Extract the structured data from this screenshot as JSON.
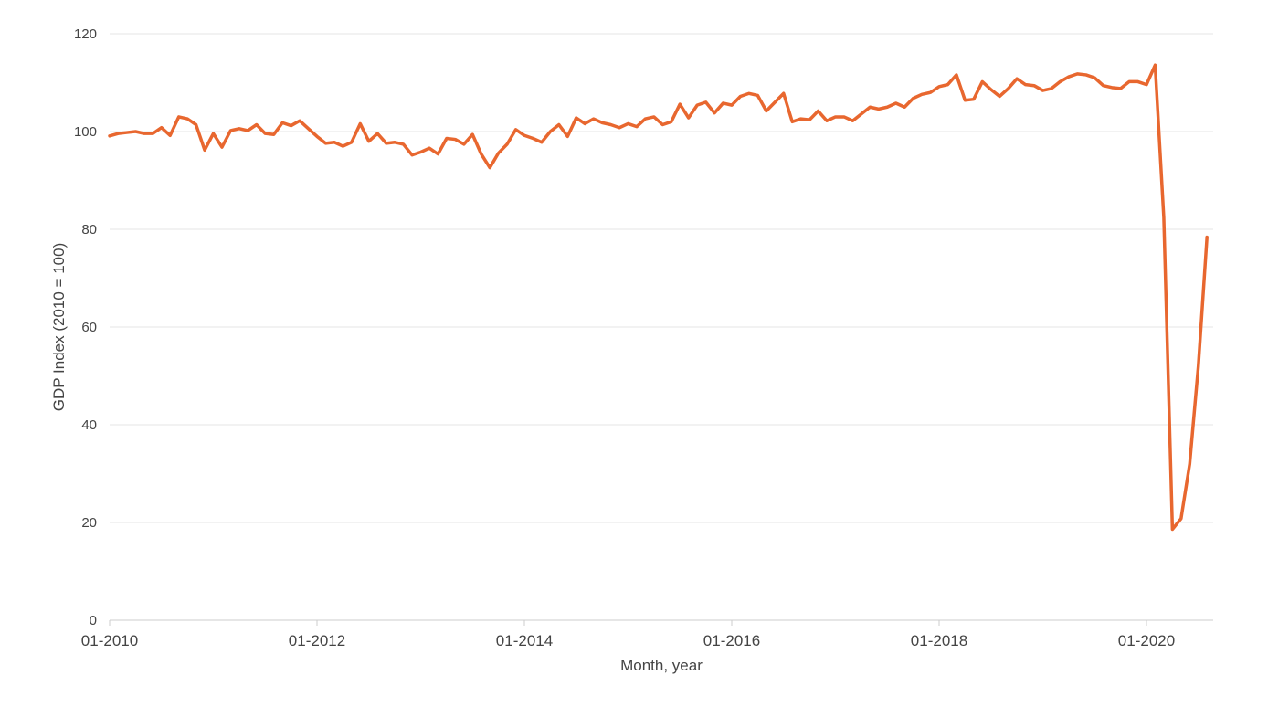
{
  "chart_data": {
    "type": "line",
    "xlabel": "Month, year",
    "ylabel": "GDP Index (2010 = 100)",
    "ylim": [
      0,
      120
    ],
    "yticks": [
      0,
      20,
      40,
      60,
      80,
      100,
      120
    ],
    "xticks": [
      "01-2010",
      "01-2012",
      "01-2014",
      "01-2016",
      "01-2018",
      "01-2020"
    ],
    "x_range": [
      "01-2010",
      "08-2020"
    ],
    "grid": true,
    "line_color": "#e8672f",
    "series": [
      {
        "x": [
          "01-2010",
          "02-2010",
          "03-2010",
          "04-2010",
          "05-2010",
          "06-2010",
          "07-2010",
          "08-2010",
          "09-2010",
          "10-2010",
          "11-2010",
          "12-2010",
          "01-2011",
          "02-2011",
          "03-2011",
          "04-2011",
          "05-2011",
          "06-2011",
          "07-2011",
          "08-2011",
          "09-2011",
          "10-2011",
          "11-2011",
          "12-2011",
          "01-2012",
          "02-2012",
          "03-2012",
          "04-2012",
          "05-2012",
          "06-2012",
          "07-2012",
          "08-2012",
          "09-2012",
          "10-2012",
          "11-2012",
          "12-2012",
          "01-2013",
          "02-2013",
          "03-2013",
          "04-2013",
          "05-2013",
          "06-2013",
          "07-2013",
          "08-2013",
          "09-2013",
          "10-2013",
          "11-2013",
          "12-2013",
          "01-2014",
          "02-2014",
          "03-2014",
          "04-2014",
          "05-2014",
          "06-2014",
          "07-2014",
          "08-2014",
          "09-2014",
          "10-2014",
          "11-2014",
          "12-2014",
          "01-2015",
          "02-2015",
          "03-2015",
          "04-2015",
          "05-2015",
          "06-2015",
          "07-2015",
          "08-2015",
          "09-2015",
          "10-2015",
          "11-2015",
          "12-2015",
          "01-2016",
          "02-2016",
          "03-2016",
          "04-2016",
          "05-2016",
          "06-2016",
          "07-2016",
          "08-2016",
          "09-2016",
          "10-2016",
          "11-2016",
          "12-2016",
          "01-2017",
          "02-2017",
          "03-2017",
          "04-2017",
          "05-2017",
          "06-2017",
          "07-2017",
          "08-2017",
          "09-2017",
          "10-2017",
          "11-2017",
          "12-2017",
          "01-2018",
          "02-2018",
          "03-2018",
          "04-2018",
          "05-2018",
          "06-2018",
          "07-2018",
          "08-2018",
          "09-2018",
          "10-2018",
          "11-2018",
          "12-2018",
          "01-2019",
          "02-2019",
          "03-2019",
          "04-2019",
          "05-2019",
          "06-2019",
          "07-2019",
          "08-2019",
          "09-2019",
          "10-2019",
          "11-2019",
          "12-2019",
          "01-2020",
          "02-2020",
          "03-2020",
          "04-2020",
          "05-2020",
          "06-2020",
          "07-2020",
          "08-2020"
        ],
        "values": [
          99.1,
          99.6,
          99.8,
          100.0,
          99.6,
          99.6,
          100.8,
          99.2,
          103.0,
          102.6,
          101.4,
          96.2,
          99.6,
          96.8,
          100.2,
          100.6,
          100.2,
          101.4,
          99.6,
          99.4,
          101.8,
          101.2,
          102.2,
          100.6,
          99.0,
          97.6,
          97.8,
          97.0,
          97.8,
          101.6,
          98.0,
          99.6,
          97.6,
          97.8,
          97.4,
          95.2,
          95.8,
          96.6,
          95.4,
          98.6,
          98.4,
          97.4,
          99.4,
          95.4,
          92.6,
          95.6,
          97.4,
          100.4,
          99.2,
          98.6,
          97.8,
          100.0,
          101.4,
          99.0,
          102.8,
          101.6,
          102.6,
          101.8,
          101.4,
          100.8,
          101.6,
          101.0,
          102.6,
          103.0,
          101.4,
          102.0,
          105.6,
          102.8,
          105.4,
          106.0,
          103.8,
          105.8,
          105.4,
          107.2,
          107.8,
          107.4,
          104.2,
          106.0,
          107.8,
          102.0,
          102.6,
          102.4,
          104.2,
          102.2,
          103.0,
          103.0,
          102.2,
          103.6,
          105.0,
          104.6,
          105.0,
          105.8,
          105.0,
          106.8,
          107.6,
          108.0,
          109.2,
          109.6,
          111.6,
          106.4,
          106.6,
          110.2,
          108.6,
          107.2,
          108.8,
          110.8,
          109.6,
          109.4,
          108.4,
          108.8,
          110.2,
          111.2,
          111.8,
          111.6,
          111.0,
          109.4,
          109.0,
          108.8,
          110.2,
          110.2,
          109.6,
          113.6,
          82.4,
          18.6,
          20.8,
          32.0,
          52.0,
          78.4
        ]
      }
    ]
  }
}
